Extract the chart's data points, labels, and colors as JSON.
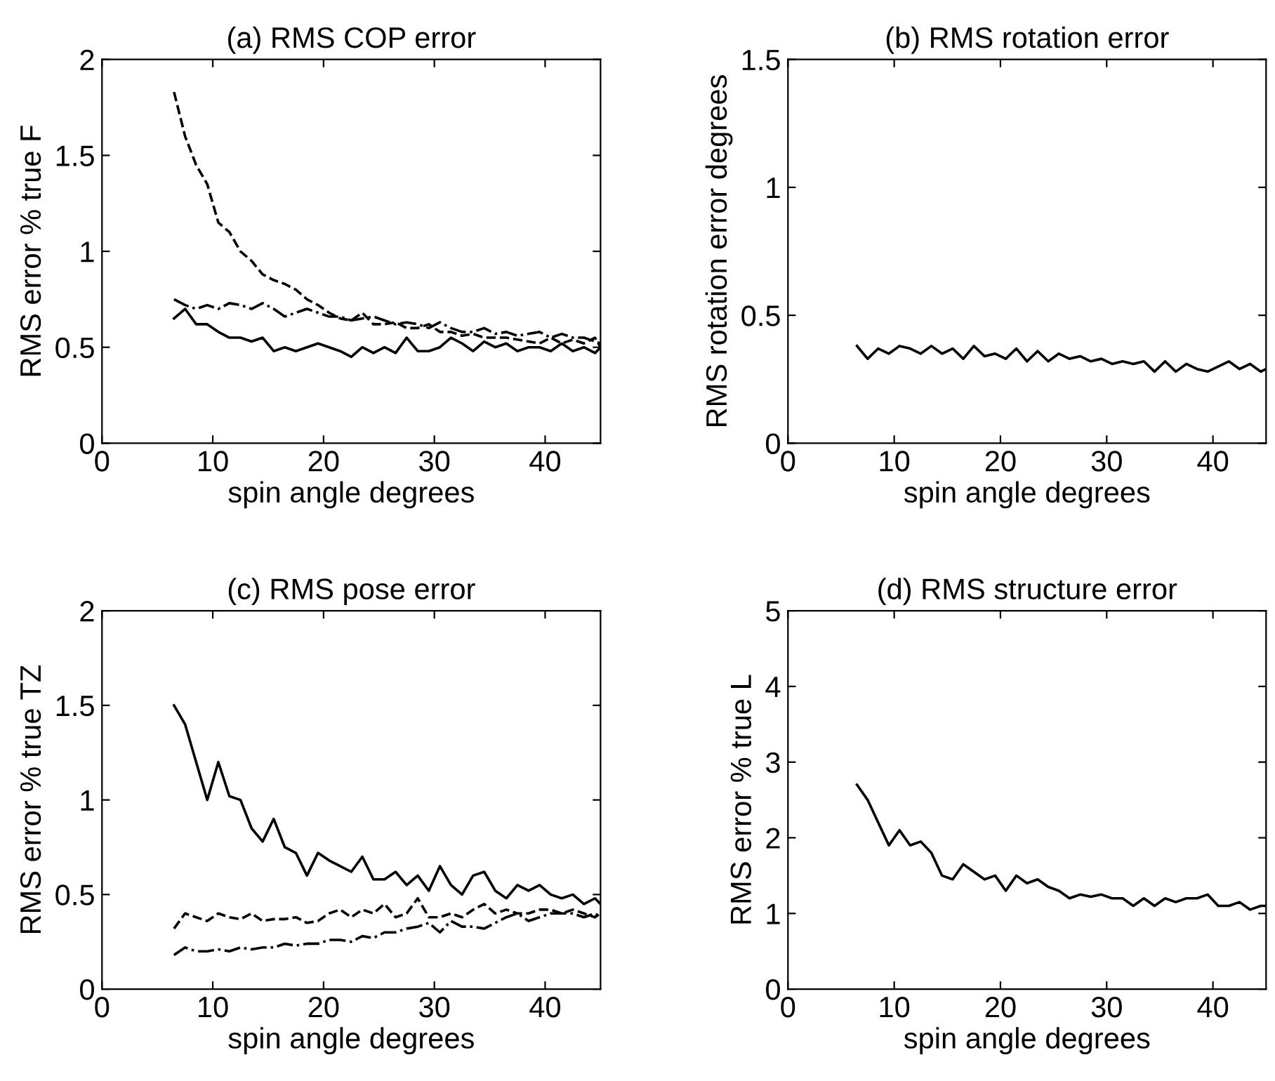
{
  "chart_data": [
    {
      "type": "line",
      "title": "(a) RMS COP error",
      "xlabel": "spin angle degrees",
      "ylabel": "RMS error % true F",
      "xlim": [
        0,
        45
      ],
      "xticks": [
        0,
        10,
        20,
        30,
        40
      ],
      "ylim": [
        0,
        2
      ],
      "yticks": [
        0,
        0.5,
        1,
        1.5,
        2
      ],
      "x": [
        6.5,
        7.5,
        8.5,
        9.5,
        10.5,
        11.5,
        12.5,
        13.5,
        14.5,
        15.5,
        16.5,
        17.5,
        18.5,
        19.5,
        20.5,
        21.5,
        22.5,
        23.5,
        24.5,
        25.5,
        26.5,
        27.5,
        28.5,
        29.5,
        30.5,
        31.5,
        32.5,
        33.5,
        34.5,
        35.5,
        36.5,
        37.5,
        38.5,
        39.5,
        40.5,
        41.5,
        42.5,
        43.5,
        44.5,
        45
      ],
      "series": [
        {
          "color": "#000000",
          "line_style": "solid",
          "values": [
            0.65,
            0.7,
            0.62,
            0.62,
            0.58,
            0.55,
            0.55,
            0.53,
            0.55,
            0.48,
            0.5,
            0.48,
            0.5,
            0.52,
            0.5,
            0.48,
            0.45,
            0.5,
            0.47,
            0.5,
            0.47,
            0.55,
            0.48,
            0.48,
            0.5,
            0.55,
            0.52,
            0.48,
            0.53,
            0.5,
            0.52,
            0.48,
            0.5,
            0.5,
            0.48,
            0.52,
            0.48,
            0.5,
            0.47,
            0.5
          ]
        },
        {
          "color": "#000000",
          "line_style": "dashed",
          "values": [
            1.83,
            1.6,
            1.45,
            1.35,
            1.15,
            1.1,
            1.0,
            0.95,
            0.88,
            0.85,
            0.83,
            0.8,
            0.75,
            0.72,
            0.68,
            0.65,
            0.64,
            0.68,
            0.62,
            0.62,
            0.63,
            0.6,
            0.6,
            0.62,
            0.58,
            0.58,
            0.56,
            0.57,
            0.55,
            0.55,
            0.55,
            0.54,
            0.53,
            0.52,
            0.55,
            0.52,
            0.54,
            0.52,
            0.55,
            0.5
          ]
        },
        {
          "color": "#000000",
          "line_style": "dashdot",
          "values": [
            0.75,
            0.72,
            0.7,
            0.72,
            0.7,
            0.73,
            0.72,
            0.7,
            0.73,
            0.7,
            0.66,
            0.68,
            0.7,
            0.68,
            0.66,
            0.66,
            0.64,
            0.65,
            0.66,
            0.64,
            0.62,
            0.63,
            0.62,
            0.6,
            0.63,
            0.6,
            0.58,
            0.58,
            0.6,
            0.57,
            0.58,
            0.56,
            0.57,
            0.58,
            0.55,
            0.57,
            0.55,
            0.55,
            0.53,
            0.52
          ]
        }
      ]
    },
    {
      "type": "line",
      "title": "(b) RMS rotation error",
      "xlabel": "spin angle degrees",
      "ylabel": "RMS rotation error degrees",
      "xlim": [
        0,
        45
      ],
      "xticks": [
        0,
        10,
        20,
        30,
        40
      ],
      "ylim": [
        0,
        1.5
      ],
      "yticks": [
        0,
        0.5,
        1,
        1.5
      ],
      "x": [
        6.5,
        7.5,
        8.5,
        9.5,
        10.5,
        11.5,
        12.5,
        13.5,
        14.5,
        15.5,
        16.5,
        17.5,
        18.5,
        19.5,
        20.5,
        21.5,
        22.5,
        23.5,
        24.5,
        25.5,
        26.5,
        27.5,
        28.5,
        29.5,
        30.5,
        31.5,
        32.5,
        33.5,
        34.5,
        35.5,
        36.5,
        37.5,
        38.5,
        39.5,
        40.5,
        41.5,
        42.5,
        43.5,
        44.5,
        45
      ],
      "series": [
        {
          "color": "#000000",
          "line_style": "solid",
          "values": [
            0.38,
            0.33,
            0.37,
            0.35,
            0.38,
            0.37,
            0.35,
            0.38,
            0.35,
            0.37,
            0.33,
            0.38,
            0.34,
            0.35,
            0.33,
            0.37,
            0.32,
            0.36,
            0.32,
            0.35,
            0.33,
            0.34,
            0.32,
            0.33,
            0.31,
            0.32,
            0.31,
            0.32,
            0.28,
            0.32,
            0.28,
            0.31,
            0.29,
            0.28,
            0.3,
            0.32,
            0.29,
            0.31,
            0.28,
            0.29
          ]
        }
      ]
    },
    {
      "type": "line",
      "title": "(c) RMS pose error",
      "xlabel": "spin angle degrees",
      "ylabel": "RMS error % true TZ",
      "xlim": [
        0,
        45
      ],
      "xticks": [
        0,
        10,
        20,
        30,
        40
      ],
      "ylim": [
        0,
        2
      ],
      "yticks": [
        0,
        0.5,
        1,
        1.5,
        2
      ],
      "x": [
        6.5,
        7.5,
        8.5,
        9.5,
        10.5,
        11.5,
        12.5,
        13.5,
        14.5,
        15.5,
        16.5,
        17.5,
        18.5,
        19.5,
        20.5,
        21.5,
        22.5,
        23.5,
        24.5,
        25.5,
        26.5,
        27.5,
        28.5,
        29.5,
        30.5,
        31.5,
        32.5,
        33.5,
        34.5,
        35.5,
        36.5,
        37.5,
        38.5,
        39.5,
        40.5,
        41.5,
        42.5,
        43.5,
        44.5,
        45
      ],
      "series": [
        {
          "color": "#000000",
          "line_style": "solid",
          "values": [
            1.5,
            1.4,
            1.2,
            1.0,
            1.2,
            1.02,
            1.0,
            0.85,
            0.78,
            0.9,
            0.75,
            0.72,
            0.6,
            0.72,
            0.68,
            0.65,
            0.62,
            0.7,
            0.58,
            0.58,
            0.62,
            0.55,
            0.6,
            0.52,
            0.65,
            0.55,
            0.5,
            0.6,
            0.62,
            0.52,
            0.48,
            0.55,
            0.52,
            0.55,
            0.5,
            0.48,
            0.5,
            0.45,
            0.48,
            0.45
          ]
        },
        {
          "color": "#000000",
          "line_style": "dashed",
          "values": [
            0.32,
            0.4,
            0.38,
            0.36,
            0.4,
            0.38,
            0.37,
            0.4,
            0.36,
            0.37,
            0.37,
            0.38,
            0.35,
            0.36,
            0.4,
            0.42,
            0.38,
            0.42,
            0.4,
            0.45,
            0.38,
            0.4,
            0.48,
            0.38,
            0.38,
            0.4,
            0.38,
            0.42,
            0.45,
            0.4,
            0.42,
            0.4,
            0.4,
            0.42,
            0.42,
            0.4,
            0.42,
            0.4,
            0.38,
            0.4
          ]
        },
        {
          "color": "#000000",
          "line_style": "dashdot",
          "values": [
            0.18,
            0.22,
            0.2,
            0.2,
            0.21,
            0.2,
            0.22,
            0.21,
            0.22,
            0.22,
            0.24,
            0.23,
            0.24,
            0.24,
            0.26,
            0.26,
            0.25,
            0.28,
            0.27,
            0.3,
            0.3,
            0.32,
            0.33,
            0.35,
            0.3,
            0.36,
            0.33,
            0.33,
            0.32,
            0.35,
            0.38,
            0.4,
            0.36,
            0.38,
            0.4,
            0.4,
            0.4,
            0.38,
            0.4,
            0.38
          ]
        }
      ]
    },
    {
      "type": "line",
      "title": "(d) RMS structure error",
      "xlabel": "spin angle degrees",
      "ylabel": "RMS error % true L",
      "xlim": [
        0,
        45
      ],
      "xticks": [
        0,
        10,
        20,
        30,
        40
      ],
      "ylim": [
        0,
        5
      ],
      "yticks": [
        0,
        1,
        2,
        3,
        4,
        5
      ],
      "x": [
        6.5,
        7.5,
        8.5,
        9.5,
        10.5,
        11.5,
        12.5,
        13.5,
        14.5,
        15.5,
        16.5,
        17.5,
        18.5,
        19.5,
        20.5,
        21.5,
        22.5,
        23.5,
        24.5,
        25.5,
        26.5,
        27.5,
        28.5,
        29.5,
        30.5,
        31.5,
        32.5,
        33.5,
        34.5,
        35.5,
        36.5,
        37.5,
        38.5,
        39.5,
        40.5,
        41.5,
        42.5,
        43.5,
        44.5,
        45
      ],
      "series": [
        {
          "color": "#000000",
          "line_style": "solid",
          "values": [
            2.7,
            2.5,
            2.2,
            1.9,
            2.1,
            1.9,
            1.95,
            1.8,
            1.5,
            1.45,
            1.65,
            1.55,
            1.45,
            1.5,
            1.3,
            1.5,
            1.4,
            1.45,
            1.35,
            1.3,
            1.2,
            1.25,
            1.22,
            1.25,
            1.2,
            1.2,
            1.1,
            1.2,
            1.1,
            1.2,
            1.15,
            1.2,
            1.2,
            1.25,
            1.1,
            1.1,
            1.15,
            1.05,
            1.1,
            1.1
          ]
        }
      ]
    }
  ]
}
